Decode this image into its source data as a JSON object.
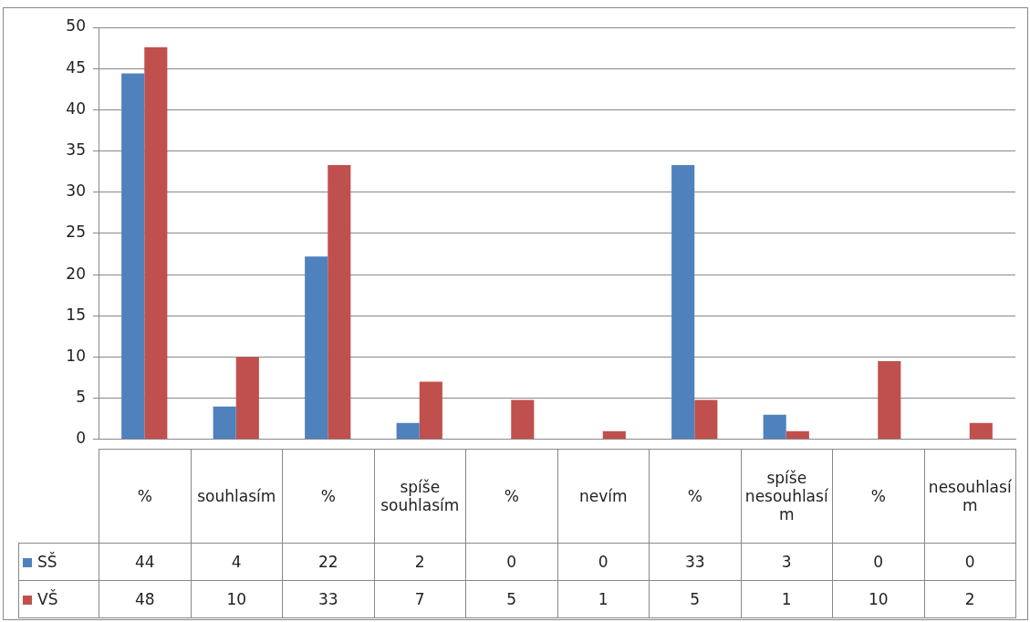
{
  "chart_data": {
    "type": "bar",
    "categories": [
      "%",
      "souhlasím",
      "%",
      "spíše souhlasím",
      "%",
      "nevím",
      "%",
      "spíše nesouhlasím",
      "%",
      "nesouhlasím"
    ],
    "series": [
      {
        "name": "SŠ",
        "color": "#4f81bd",
        "values": [
          44.4,
          4,
          22.2,
          2,
          0,
          0,
          33.3,
          3,
          0,
          0
        ],
        "value_labels": [
          "44",
          "4",
          "22",
          "2",
          "0",
          "0",
          "33",
          "3",
          "0",
          "0"
        ]
      },
      {
        "name": "VŠ",
        "color": "#c0504d",
        "values": [
          47.6,
          10,
          33.3,
          7,
          4.8,
          1,
          4.8,
          1,
          9.5,
          2
        ],
        "value_labels": [
          "48",
          "10",
          "33",
          "7",
          "5",
          "1",
          "5",
          "1",
          "10",
          "2"
        ]
      }
    ],
    "ylim": [
      0,
      50
    ],
    "yticks": [
      0,
      5,
      10,
      15,
      20,
      25,
      30,
      35,
      40,
      45,
      50
    ],
    "grid": "y",
    "legend": "bottom left"
  }
}
